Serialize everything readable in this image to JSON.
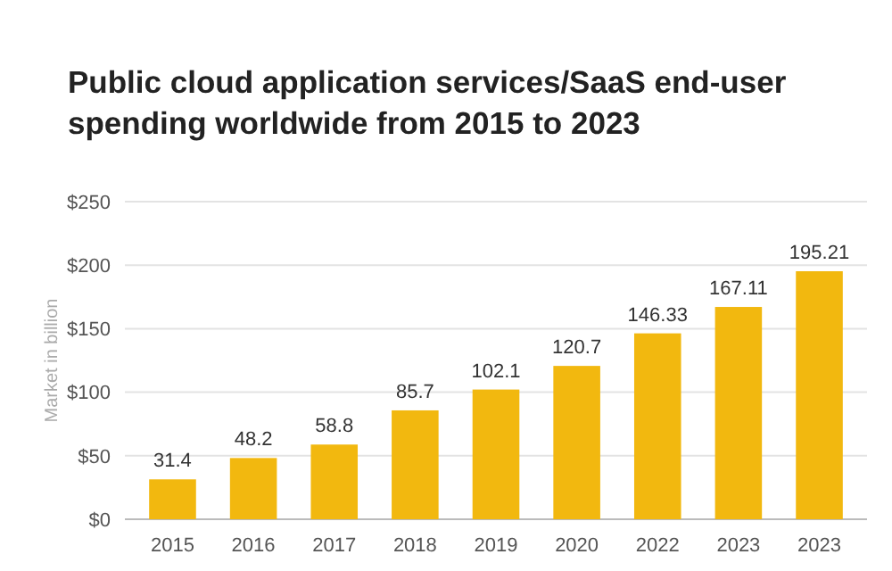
{
  "chart_data": {
    "type": "bar",
    "title": "Public cloud application services/SaaS end-user spending worldwide from 2015 to 2023",
    "ylabel": "Market in billion",
    "categories": [
      "2015",
      "2016",
      "2017",
      "2018",
      "2019",
      "2020",
      "2022",
      "2023",
      "2023"
    ],
    "values": [
      31.4,
      48.2,
      58.8,
      85.7,
      102.1,
      120.7,
      146.33,
      167.11,
      195.21
    ],
    "color": "#f2b80f",
    "data_labels": true,
    "grid": "y",
    "ylim": [
      0,
      250
    ],
    "yticks": [
      {
        "value": 0,
        "label": "$0"
      },
      {
        "value": 50,
        "label": "$50"
      },
      {
        "value": 100,
        "label": "$100"
      },
      {
        "value": 150,
        "label": "$150"
      },
      {
        "value": 200,
        "label": "$200"
      },
      {
        "value": 250,
        "label": "$250"
      }
    ]
  }
}
